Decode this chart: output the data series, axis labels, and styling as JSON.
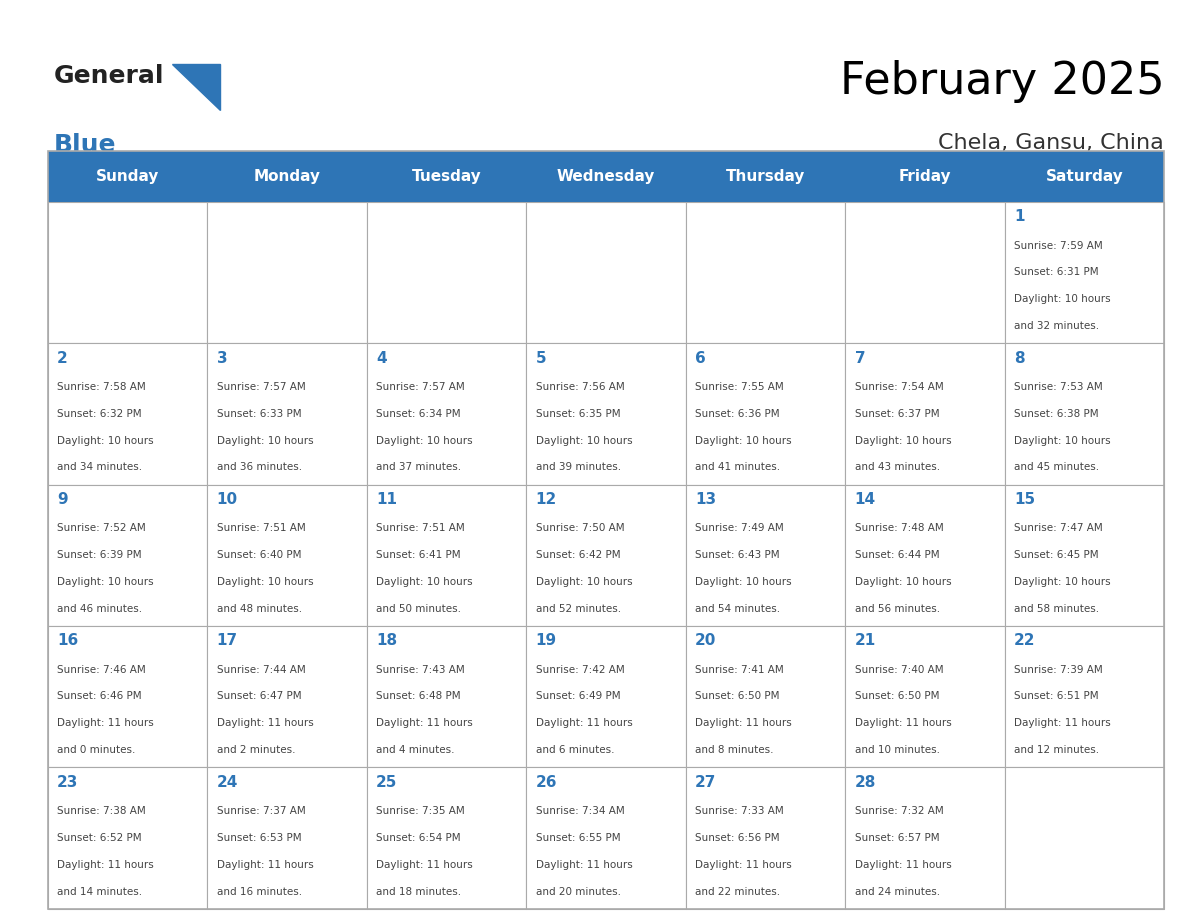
{
  "title": "February 2025",
  "subtitle": "Chela, Gansu, China",
  "header_bg_color": "#2E75B6",
  "header_text_color": "#FFFFFF",
  "day_names": [
    "Sunday",
    "Monday",
    "Tuesday",
    "Wednesday",
    "Thursday",
    "Friday",
    "Saturday"
  ],
  "cell_bg_color": "#FFFFFF",
  "cell_border_color": "#AAAAAA",
  "day_num_color": "#2E75B6",
  "info_text_color": "#444444",
  "title_color": "#000000",
  "subtitle_color": "#333333",
  "logo_text1": "General",
  "logo_text2": "Blue",
  "logo_color1": "#222222",
  "logo_color2": "#2E75B6",
  "weeks": [
    [
      {
        "day": null,
        "info": ""
      },
      {
        "day": null,
        "info": ""
      },
      {
        "day": null,
        "info": ""
      },
      {
        "day": null,
        "info": ""
      },
      {
        "day": null,
        "info": ""
      },
      {
        "day": null,
        "info": ""
      },
      {
        "day": 1,
        "info": "Sunrise: 7:59 AM\nSunset: 6:31 PM\nDaylight: 10 hours\nand 32 minutes."
      }
    ],
    [
      {
        "day": 2,
        "info": "Sunrise: 7:58 AM\nSunset: 6:32 PM\nDaylight: 10 hours\nand 34 minutes."
      },
      {
        "day": 3,
        "info": "Sunrise: 7:57 AM\nSunset: 6:33 PM\nDaylight: 10 hours\nand 36 minutes."
      },
      {
        "day": 4,
        "info": "Sunrise: 7:57 AM\nSunset: 6:34 PM\nDaylight: 10 hours\nand 37 minutes."
      },
      {
        "day": 5,
        "info": "Sunrise: 7:56 AM\nSunset: 6:35 PM\nDaylight: 10 hours\nand 39 minutes."
      },
      {
        "day": 6,
        "info": "Sunrise: 7:55 AM\nSunset: 6:36 PM\nDaylight: 10 hours\nand 41 minutes."
      },
      {
        "day": 7,
        "info": "Sunrise: 7:54 AM\nSunset: 6:37 PM\nDaylight: 10 hours\nand 43 minutes."
      },
      {
        "day": 8,
        "info": "Sunrise: 7:53 AM\nSunset: 6:38 PM\nDaylight: 10 hours\nand 45 minutes."
      }
    ],
    [
      {
        "day": 9,
        "info": "Sunrise: 7:52 AM\nSunset: 6:39 PM\nDaylight: 10 hours\nand 46 minutes."
      },
      {
        "day": 10,
        "info": "Sunrise: 7:51 AM\nSunset: 6:40 PM\nDaylight: 10 hours\nand 48 minutes."
      },
      {
        "day": 11,
        "info": "Sunrise: 7:51 AM\nSunset: 6:41 PM\nDaylight: 10 hours\nand 50 minutes."
      },
      {
        "day": 12,
        "info": "Sunrise: 7:50 AM\nSunset: 6:42 PM\nDaylight: 10 hours\nand 52 minutes."
      },
      {
        "day": 13,
        "info": "Sunrise: 7:49 AM\nSunset: 6:43 PM\nDaylight: 10 hours\nand 54 minutes."
      },
      {
        "day": 14,
        "info": "Sunrise: 7:48 AM\nSunset: 6:44 PM\nDaylight: 10 hours\nand 56 minutes."
      },
      {
        "day": 15,
        "info": "Sunrise: 7:47 AM\nSunset: 6:45 PM\nDaylight: 10 hours\nand 58 minutes."
      }
    ],
    [
      {
        "day": 16,
        "info": "Sunrise: 7:46 AM\nSunset: 6:46 PM\nDaylight: 11 hours\nand 0 minutes."
      },
      {
        "day": 17,
        "info": "Sunrise: 7:44 AM\nSunset: 6:47 PM\nDaylight: 11 hours\nand 2 minutes."
      },
      {
        "day": 18,
        "info": "Sunrise: 7:43 AM\nSunset: 6:48 PM\nDaylight: 11 hours\nand 4 minutes."
      },
      {
        "day": 19,
        "info": "Sunrise: 7:42 AM\nSunset: 6:49 PM\nDaylight: 11 hours\nand 6 minutes."
      },
      {
        "day": 20,
        "info": "Sunrise: 7:41 AM\nSunset: 6:50 PM\nDaylight: 11 hours\nand 8 minutes."
      },
      {
        "day": 21,
        "info": "Sunrise: 7:40 AM\nSunset: 6:50 PM\nDaylight: 11 hours\nand 10 minutes."
      },
      {
        "day": 22,
        "info": "Sunrise: 7:39 AM\nSunset: 6:51 PM\nDaylight: 11 hours\nand 12 minutes."
      }
    ],
    [
      {
        "day": 23,
        "info": "Sunrise: 7:38 AM\nSunset: 6:52 PM\nDaylight: 11 hours\nand 14 minutes."
      },
      {
        "day": 24,
        "info": "Sunrise: 7:37 AM\nSunset: 6:53 PM\nDaylight: 11 hours\nand 16 minutes."
      },
      {
        "day": 25,
        "info": "Sunrise: 7:35 AM\nSunset: 6:54 PM\nDaylight: 11 hours\nand 18 minutes."
      },
      {
        "day": 26,
        "info": "Sunrise: 7:34 AM\nSunset: 6:55 PM\nDaylight: 11 hours\nand 20 minutes."
      },
      {
        "day": 27,
        "info": "Sunrise: 7:33 AM\nSunset: 6:56 PM\nDaylight: 11 hours\nand 22 minutes."
      },
      {
        "day": 28,
        "info": "Sunrise: 7:32 AM\nSunset: 6:57 PM\nDaylight: 11 hours\nand 24 minutes."
      },
      {
        "day": null,
        "info": ""
      }
    ]
  ]
}
